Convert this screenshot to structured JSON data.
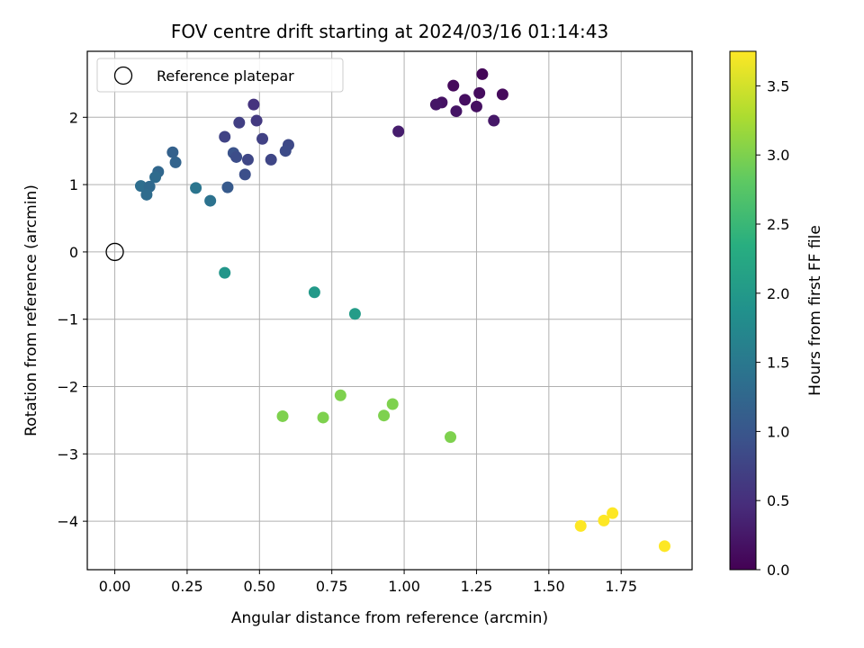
{
  "chart_data": {
    "type": "scatter",
    "title": "FOV centre drift starting at 2024/03/16 01:14:43",
    "xlabel": "Angular distance from reference (arcmin)",
    "ylabel": "Rotation from reference (arcmin)",
    "xlim": [
      -0.095,
      1.995
    ],
    "ylim": [
      -4.72,
      2.98
    ],
    "x_ticks": [
      0.0,
      0.25,
      0.5,
      0.75,
      1.0,
      1.25,
      1.5,
      1.75
    ],
    "x_tick_labels": [
      "0.00",
      "0.25",
      "0.50",
      "0.75",
      "1.00",
      "1.25",
      "1.50",
      "1.75"
    ],
    "y_ticks": [
      -4,
      -3,
      -2,
      -1,
      0,
      1,
      2
    ],
    "y_tick_labels": [
      "−4",
      "−3",
      "−2",
      "−1",
      "0",
      "1",
      "2"
    ],
    "grid": true,
    "legend": {
      "placement": "upper-left",
      "entries": [
        {
          "label": "Reference platepar",
          "marker": "open-circle"
        }
      ]
    },
    "reference_point": {
      "x": 0.0,
      "y": 0.0
    },
    "colorbar": {
      "label": "Hours from first FF file",
      "colormap": "viridis",
      "range": [
        0.0,
        3.75
      ],
      "ticks": [
        0.0,
        0.5,
        1.0,
        1.5,
        2.0,
        2.5,
        3.0,
        3.5
      ],
      "tick_labels": [
        "0.0",
        "0.5",
        "1.0",
        "1.5",
        "2.0",
        "2.5",
        "3.0",
        "3.5"
      ]
    },
    "points": [
      {
        "x": 1.27,
        "y": 2.64,
        "c": 0.05
      },
      {
        "x": 1.17,
        "y": 2.47,
        "c": 0.08
      },
      {
        "x": 1.26,
        "y": 2.36,
        "c": 0.12
      },
      {
        "x": 1.34,
        "y": 2.34,
        "c": 0.1
      },
      {
        "x": 1.21,
        "y": 2.26,
        "c": 0.14
      },
      {
        "x": 1.13,
        "y": 2.22,
        "c": 0.18
      },
      {
        "x": 1.11,
        "y": 2.19,
        "c": 0.22
      },
      {
        "x": 1.25,
        "y": 2.16,
        "c": 0.16
      },
      {
        "x": 1.18,
        "y": 2.09,
        "c": 0.2
      },
      {
        "x": 1.31,
        "y": 1.95,
        "c": 0.24
      },
      {
        "x": 0.98,
        "y": 1.79,
        "c": 0.3
      },
      {
        "x": 0.48,
        "y": 2.19,
        "c": 0.55
      },
      {
        "x": 0.49,
        "y": 1.95,
        "c": 0.62
      },
      {
        "x": 0.43,
        "y": 1.92,
        "c": 0.7
      },
      {
        "x": 0.38,
        "y": 1.71,
        "c": 0.75
      },
      {
        "x": 0.51,
        "y": 1.68,
        "c": 0.72
      },
      {
        "x": 0.6,
        "y": 1.59,
        "c": 0.82
      },
      {
        "x": 0.59,
        "y": 1.5,
        "c": 0.85
      },
      {
        "x": 0.41,
        "y": 1.47,
        "c": 0.95
      },
      {
        "x": 0.42,
        "y": 1.41,
        "c": 0.88
      },
      {
        "x": 0.46,
        "y": 1.37,
        "c": 0.8
      },
      {
        "x": 0.54,
        "y": 1.37,
        "c": 0.78
      },
      {
        "x": 0.45,
        "y": 1.15,
        "c": 0.9
      },
      {
        "x": 0.39,
        "y": 0.96,
        "c": 1.05
      },
      {
        "x": 0.2,
        "y": 1.48,
        "c": 1.15
      },
      {
        "x": 0.21,
        "y": 1.33,
        "c": 1.2
      },
      {
        "x": 0.15,
        "y": 1.19,
        "c": 1.25
      },
      {
        "x": 0.14,
        "y": 1.11,
        "c": 1.3
      },
      {
        "x": 0.09,
        "y": 0.98,
        "c": 1.35
      },
      {
        "x": 0.12,
        "y": 0.97,
        "c": 1.28
      },
      {
        "x": 0.11,
        "y": 0.85,
        "c": 1.32
      },
      {
        "x": 0.28,
        "y": 0.95,
        "c": 1.45
      },
      {
        "x": 0.33,
        "y": 0.76,
        "c": 1.4
      },
      {
        "x": 0.38,
        "y": -0.31,
        "c": 1.95
      },
      {
        "x": 0.69,
        "y": -0.6,
        "c": 2.0
      },
      {
        "x": 0.83,
        "y": -0.92,
        "c": 2.05
      },
      {
        "x": 0.78,
        "y": -2.13,
        "c": 3.0
      },
      {
        "x": 0.96,
        "y": -2.26,
        "c": 3.0
      },
      {
        "x": 0.58,
        "y": -2.44,
        "c": 3.0
      },
      {
        "x": 0.72,
        "y": -2.46,
        "c": 3.0
      },
      {
        "x": 0.93,
        "y": -2.43,
        "c": 3.0
      },
      {
        "x": 1.16,
        "y": -2.75,
        "c": 3.0
      },
      {
        "x": 1.72,
        "y": -3.88,
        "c": 3.75
      },
      {
        "x": 1.69,
        "y": -3.99,
        "c": 3.75
      },
      {
        "x": 1.61,
        "y": -4.07,
        "c": 3.75
      },
      {
        "x": 1.9,
        "y": -4.37,
        "c": 3.75
      }
    ]
  }
}
